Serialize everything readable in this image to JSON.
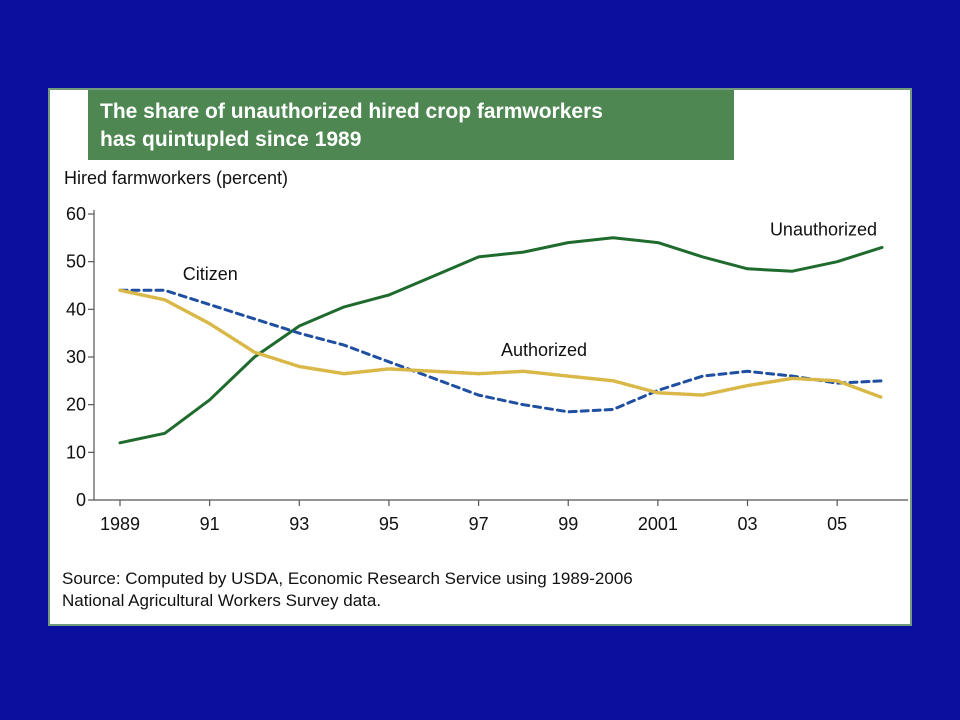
{
  "chart_data": {
    "type": "line",
    "title": [
      "The share of unauthorized hired crop farmworkers",
      "has quintupled since 1989"
    ],
    "ylabel": "Hired farmworkers (percent)",
    "xlabel": "",
    "ylim": [
      0,
      60
    ],
    "xlim": [
      1989,
      2006
    ],
    "yticks": [
      0,
      10,
      20,
      30,
      40,
      50,
      60
    ],
    "xticks": [
      1989,
      1991,
      1993,
      1995,
      1997,
      1999,
      2001,
      2003,
      2005
    ],
    "xtick_labels": [
      "1989",
      "91",
      "93",
      "95",
      "97",
      "99",
      "2001",
      "03",
      "05"
    ],
    "x": [
      1989,
      1990,
      1991,
      1992,
      1993,
      1994,
      1995,
      1996,
      1997,
      1998,
      1999,
      2000,
      2001,
      2002,
      2003,
      2004,
      2005,
      2006
    ],
    "series": [
      {
        "name": "Unauthorized",
        "color": "#1f6b2e",
        "style": "solid",
        "values": [
          12,
          14,
          21,
          30,
          36.5,
          40.5,
          43,
          47,
          51,
          52,
          54,
          55,
          54,
          51,
          48.5,
          48,
          50,
          53
        ]
      },
      {
        "name": "Citizen",
        "color": "#1f4fa0",
        "style": "dashed",
        "values": [
          44,
          44,
          41,
          38,
          35,
          32.5,
          29,
          25.5,
          22,
          20,
          18.5,
          19,
          23,
          26,
          27,
          26,
          24.5,
          25
        ]
      },
      {
        "name": "Authorized",
        "color": "#d9b848",
        "style": "dotted",
        "values": [
          44,
          42,
          37,
          31,
          28,
          26.5,
          27.5,
          27,
          26.5,
          27,
          26,
          25,
          22.5,
          22,
          24,
          25.5,
          25,
          21.5
        ]
      }
    ],
    "grid": false,
    "legend": "inline labels"
  },
  "source": [
    "Source:  Computed by USDA, Economic Research Service using 1989-2006",
    "National Agricultural Workers Survey data."
  ]
}
